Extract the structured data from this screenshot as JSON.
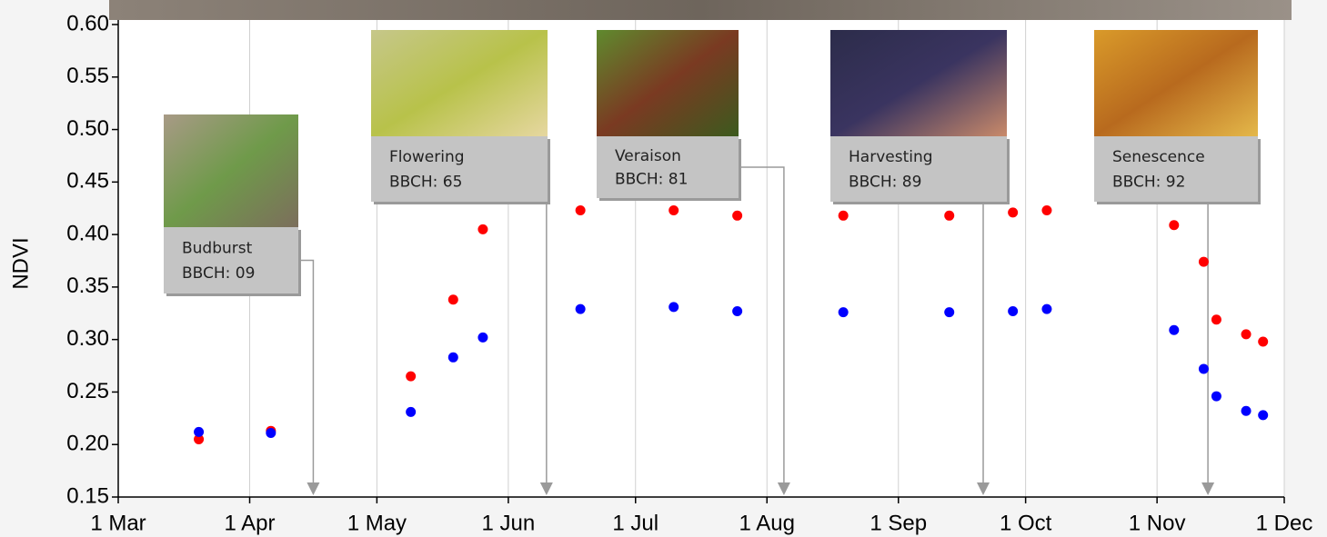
{
  "chart_data": {
    "type": "scatter",
    "y_label": "NDVI",
    "xlim": [
      "1 Mar",
      "1 Dec"
    ],
    "xticks": [
      "1 Mar",
      "1 Apr",
      "1 May",
      "1 Jun",
      "1 Jul",
      "1 Aug",
      "1 Sep",
      "1 Oct",
      "1 Nov",
      "1 Dec"
    ],
    "ylim": [
      0.15,
      0.6
    ],
    "yticks": [
      0.15,
      {
        "value": 0.2,
        "label": "0.20"
      },
      0.25,
      {
        "value": 0.3,
        "label": "0.30"
      },
      0.35,
      {
        "value": 0.4,
        "label": "0.40"
      },
      0.45,
      {
        "value": 0.5,
        "label": "0.50"
      },
      0.55,
      {
        "value": 0.6,
        "label": "0.60"
      }
    ],
    "grid": true,
    "x": [
      "20 Mar",
      "6 Apr",
      "9 May",
      "19 May",
      "26 May",
      "18 Jun",
      "10 Jul",
      "25 Jul",
      "19 Aug",
      "13 Sep",
      "28 Sep",
      "6 Oct",
      "5 Nov",
      "12 Nov",
      "15 Nov",
      "22 Nov",
      "26 Nov"
    ],
    "series": [
      {
        "color": "#ff0000",
        "values": [
          0.205,
          0.213,
          0.265,
          0.338,
          0.405,
          0.423,
          0.423,
          0.418,
          0.418,
          0.418,
          0.421,
          0.423,
          0.409,
          0.374,
          0.319,
          0.305,
          0.298
        ]
      },
      {
        "color": "#0000ff",
        "values": [
          0.212,
          0.211,
          0.231,
          0.283,
          0.302,
          0.329,
          0.331,
          0.327,
          0.326,
          0.326,
          0.327,
          0.329,
          0.309,
          0.272,
          0.246,
          0.232,
          0.228
        ]
      }
    ],
    "annotations": [
      {
        "label": "Budburst",
        "stage": "BBCH: 09",
        "x": "16 Apr"
      },
      {
        "label": "Flowering",
        "stage": "BBCH: 65",
        "x": "10 Jun"
      },
      {
        "label": "Veraison",
        "stage": "BBCH: 81",
        "x": "5 Aug"
      },
      {
        "label": "Harvesting",
        "stage": "BBCH: 89",
        "x": "21 Sep"
      },
      {
        "label": "Senescence",
        "stage": "BBCH: 92",
        "x": "13 Nov"
      }
    ]
  }
}
